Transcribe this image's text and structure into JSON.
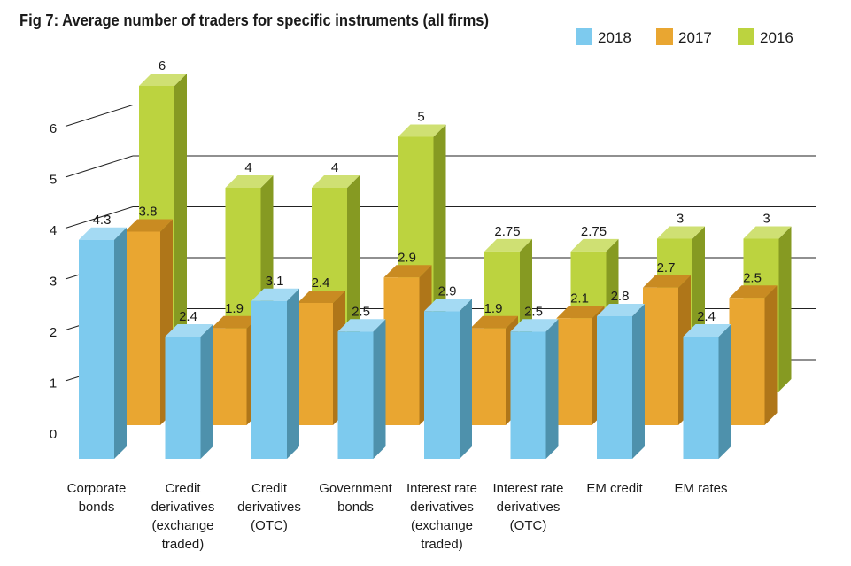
{
  "chart_data": {
    "type": "bar",
    "title": "Fig 7: Average number of traders for specific instruments (all firms)",
    "categories": [
      [
        "Corporate",
        "bonds"
      ],
      [
        "Credit",
        "derivatives",
        "(exchange",
        "traded)"
      ],
      [
        "Credit",
        "derivatives",
        "(OTC)"
      ],
      [
        "Government",
        "bonds"
      ],
      [
        "Interest rate",
        "derivatives",
        "(exchange",
        "traded)"
      ],
      [
        "Interest rate",
        "derivatives",
        "(OTC)"
      ],
      [
        "EM credit"
      ],
      [
        "EM rates"
      ]
    ],
    "series": [
      {
        "name": "2018",
        "values": [
          4.3,
          2.4,
          3.1,
          2.5,
          2.9,
          2.5,
          2.8,
          2.4
        ],
        "labels": [
          "4.3",
          "2.4",
          "3.1",
          "2.5",
          "2.9",
          "2.5",
          "2.8",
          "2.4"
        ]
      },
      {
        "name": "2017",
        "values": [
          3.8,
          1.9,
          2.4,
          2.9,
          1.9,
          2.1,
          2.7,
          2.5
        ],
        "labels": [
          "3.8",
          "1.9",
          "2.4",
          "2.9",
          "1.9",
          "2.1",
          "2.7",
          "2.5"
        ]
      },
      {
        "name": "2016",
        "values": [
          6,
          4,
          4,
          5,
          2.75,
          2.75,
          3,
          3
        ],
        "labels": [
          "6",
          "4",
          "4",
          "5",
          "2.75",
          "2.75",
          "3",
          "3"
        ]
      }
    ],
    "y_ticks": [
      "0",
      "1",
      "2",
      "3",
      "4",
      "5",
      "6"
    ],
    "ylim": [
      0,
      6
    ],
    "legend_position": "top-right",
    "gridlines": true,
    "colors": {
      "2018": {
        "front": "#7DCAEE",
        "side": "#4E91AC",
        "top": "#A4DAF3"
      },
      "2017": {
        "front": "#E9A631",
        "side": "#AF7619",
        "top": "#C98B22"
      },
      "2016": {
        "front": "#BCD33F",
        "side": "#869A22",
        "top": "#CFE073"
      },
      "grid": "#222222",
      "text": "#1a1a1a"
    }
  }
}
